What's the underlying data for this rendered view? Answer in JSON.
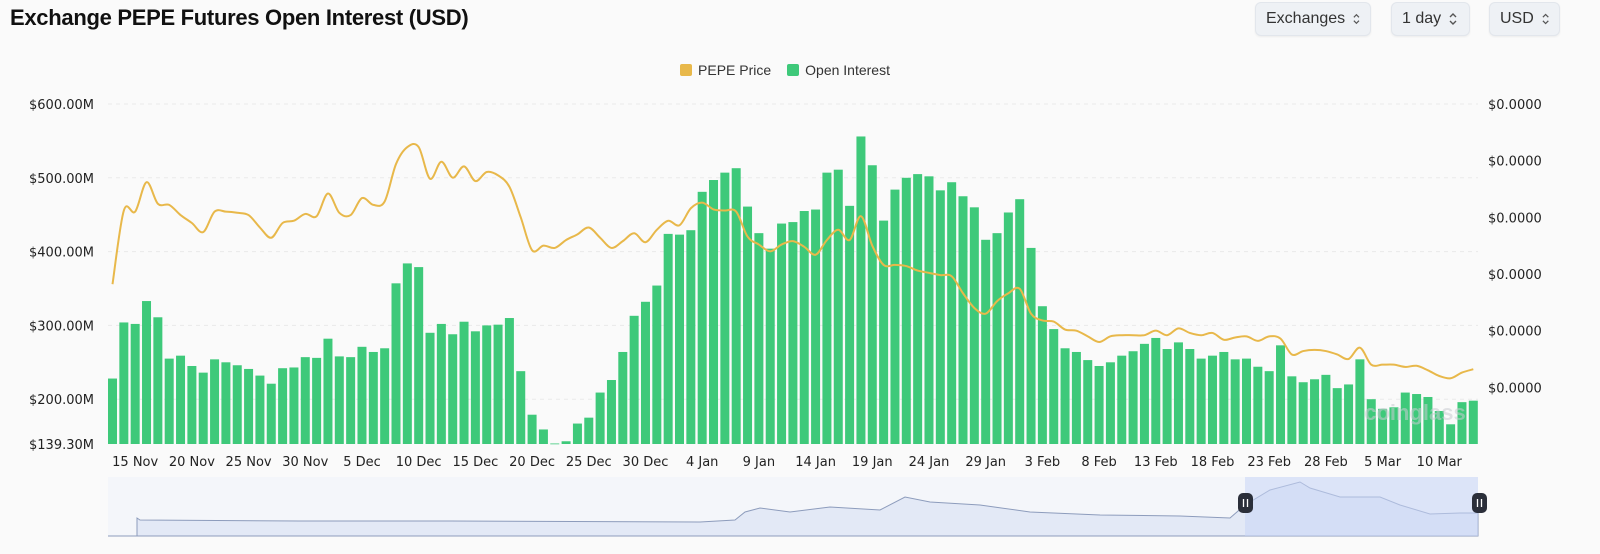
{
  "header": {
    "title": "Exchange PEPE Futures Open Interest (USD)",
    "controls": [
      {
        "label": "Exchanges"
      },
      {
        "label": "1 day"
      },
      {
        "label": "USD"
      }
    ]
  },
  "watermark": "coinglass",
  "colors": {
    "price": "#e8b84a",
    "open_interest": "#3ec97a",
    "navigator_fill": "#dfe6f5",
    "navigator_line": "#7d8fb3",
    "handle": "#2b2f3a"
  },
  "chart_data": {
    "type": "bar+line",
    "title": "Exchange PEPE Futures Open Interest (USD)",
    "legend": {
      "placement": "top-center",
      "entries": [
        "PEPE Price",
        "Open Interest"
      ]
    },
    "grid": true,
    "left_axis": {
      "ylim": [
        139.3,
        600
      ],
      "ticks": [
        "$600.00M",
        "$500.00M",
        "$400.00M",
        "$300.00M",
        "$200.00M",
        "$139.30M"
      ],
      "tick_values": [
        600,
        500,
        400,
        300,
        200,
        139.3
      ],
      "unit": "USD millions"
    },
    "right_axis": {
      "ylim": [
        0,
        3e-05
      ],
      "ticks": [
        "$0.0000",
        "$0.0000",
        "$0.0000",
        "$0.0000",
        "$0.0000",
        "$0.0000"
      ],
      "tick_values": [
        3e-05,
        2.5e-05,
        2e-05,
        1.5e-05,
        1e-05,
        5e-06
      ]
    },
    "x_ticks": [
      "15 Nov",
      "20 Nov",
      "25 Nov",
      "30 Nov",
      "5 Dec",
      "10 Dec",
      "15 Dec",
      "20 Dec",
      "25 Dec",
      "30 Dec",
      "4 Jan",
      "9 Jan",
      "14 Jan",
      "19 Jan",
      "24 Jan",
      "29 Jan",
      "3 Feb",
      "8 Feb",
      "13 Feb",
      "18 Feb",
      "23 Feb",
      "28 Feb",
      "5 Mar",
      "10 Mar"
    ],
    "categories": [
      "13 Nov",
      "14 Nov",
      "15 Nov",
      "16 Nov",
      "17 Nov",
      "18 Nov",
      "19 Nov",
      "20 Nov",
      "21 Nov",
      "22 Nov",
      "23 Nov",
      "24 Nov",
      "25 Nov",
      "26 Nov",
      "27 Nov",
      "28 Nov",
      "29 Nov",
      "30 Nov",
      "1 Dec",
      "2 Dec",
      "3 Dec",
      "4 Dec",
      "5 Dec",
      "6 Dec",
      "7 Dec",
      "8 Dec",
      "9 Dec",
      "10 Dec",
      "11 Dec",
      "12 Dec",
      "13 Dec",
      "14 Dec",
      "15 Dec",
      "16 Dec",
      "17 Dec",
      "18 Dec",
      "19 Dec",
      "20 Dec",
      "21 Dec",
      "22 Dec",
      "23 Dec",
      "24 Dec",
      "25 Dec",
      "26 Dec",
      "27 Dec",
      "28 Dec",
      "29 Dec",
      "30 Dec",
      "31 Dec",
      "1 Jan",
      "2 Jan",
      "3 Jan",
      "4 Jan",
      "5 Jan",
      "6 Jan",
      "7 Jan",
      "8 Jan",
      "9 Jan",
      "10 Jan",
      "11 Jan",
      "12 Jan",
      "13 Jan",
      "14 Jan",
      "15 Jan",
      "16 Jan",
      "17 Jan",
      "18 Jan",
      "19 Jan",
      "20 Jan",
      "21 Jan",
      "22 Jan",
      "23 Jan",
      "24 Jan",
      "25 Jan",
      "26 Jan",
      "27 Jan",
      "28 Jan",
      "29 Jan",
      "30 Jan",
      "31 Jan",
      "1 Feb",
      "2 Feb",
      "3 Feb",
      "4 Feb",
      "5 Feb",
      "6 Feb",
      "7 Feb",
      "8 Feb",
      "9 Feb",
      "10 Feb",
      "11 Feb",
      "12 Feb",
      "13 Feb",
      "14 Feb",
      "15 Feb",
      "16 Feb",
      "17 Feb",
      "18 Feb",
      "19 Feb",
      "20 Feb",
      "21 Feb",
      "22 Feb",
      "23 Feb",
      "24 Feb",
      "25 Feb",
      "26 Feb",
      "27 Feb",
      "28 Feb",
      "1 Mar",
      "2 Mar",
      "3 Mar",
      "4 Mar",
      "5 Mar",
      "6 Mar",
      "7 Mar",
      "8 Mar",
      "9 Mar",
      "10 Mar",
      "11 Mar",
      "12 Mar",
      "13 Mar"
    ],
    "series": [
      {
        "name": "Open Interest",
        "type": "bar",
        "axis": "left",
        "values": [
          228,
          304,
          302,
          333,
          311,
          255,
          259,
          245,
          236,
          254,
          250,
          246,
          241,
          232,
          221,
          242,
          243,
          257,
          256,
          282,
          258,
          257,
          271,
          264,
          269,
          357,
          384,
          379,
          290,
          302,
          288,
          305,
          292,
          300,
          301,
          310,
          238,
          179,
          159,
          140,
          143,
          167,
          175,
          209,
          226,
          264,
          313,
          332,
          354,
          424,
          423,
          429,
          481,
          497,
          507,
          513,
          461,
          425,
          404,
          438,
          440,
          455,
          457,
          507,
          511,
          462,
          556,
          517,
          442,
          484,
          500,
          505,
          502,
          483,
          494,
          475,
          460,
          416,
          425,
          453,
          471,
          405,
          326,
          295,
          269,
          264,
          253,
          245,
          250,
          259,
          265,
          275,
          283,
          268,
          277,
          268,
          255,
          259,
          264,
          254,
          255,
          244,
          238,
          273,
          231,
          223,
          227,
          233,
          215,
          220,
          254,
          200,
          187,
          189,
          209,
          207,
          203,
          184,
          166,
          196,
          198
        ]
      },
      {
        "name": "PEPE Price",
        "type": "line",
        "axis": "right",
        "values": [
          1.41e-05,
          2.06e-05,
          2.05e-05,
          2.31e-05,
          2.12e-05,
          2.11e-05,
          2.02e-05,
          1.95e-05,
          1.87e-05,
          2.05e-05,
          2.05e-05,
          2.04e-05,
          2.02e-05,
          1.91e-05,
          1.82e-05,
          1.95e-05,
          1.97e-05,
          2.03e-05,
          2.01e-05,
          2.21e-05,
          2.04e-05,
          2.02e-05,
          2.17e-05,
          2.11e-05,
          2.14e-05,
          2.47e-05,
          2.62e-05,
          2.62e-05,
          2.34e-05,
          2.49e-05,
          2.35e-05,
          2.45e-05,
          2.32e-05,
          2.4e-05,
          2.37e-05,
          2.27e-05,
          2e-05,
          1.71e-05,
          1.75e-05,
          1.73e-05,
          1.8e-05,
          1.85e-05,
          1.91e-05,
          1.82e-05,
          1.73e-05,
          1.79e-05,
          1.86e-05,
          1.78e-05,
          1.89e-05,
          1.97e-05,
          1.93e-05,
          2.08e-05,
          2.13e-05,
          2.07e-05,
          2.06e-05,
          2.05e-05,
          1.83e-05,
          1.76e-05,
          1.7e-05,
          1.76e-05,
          1.79e-05,
          1.74e-05,
          1.67e-05,
          1.8e-05,
          1.89e-05,
          1.8e-05,
          2.01e-05,
          1.75e-05,
          1.58e-05,
          1.58e-05,
          1.57e-05,
          1.53e-05,
          1.51e-05,
          1.49e-05,
          1.48e-05,
          1.33e-05,
          1.2e-05,
          1.15e-05,
          1.26e-05,
          1.33e-05,
          1.37e-05,
          1.15e-05,
          1.09e-05,
          1.08e-05,
          1.01e-05,
          1e-05,
          9.5e-06,
          9e-06,
          9.5e-06,
          9.6e-06,
          9.6e-06,
          9.6e-06,
          1e-05,
          9.6e-06,
          1.02e-05,
          9.8e-06,
          9.6e-06,
          9.8e-06,
          9.2e-06,
          9.4e-06,
          9.5e-06,
          9.1e-06,
          9.5e-06,
          9.3e-06,
          7.9e-06,
          8.2e-06,
          8.3e-06,
          8.2e-06,
          7.9e-06,
          7.5e-06,
          8.5e-06,
          7e-06,
          7e-06,
          7e-06,
          6.8e-06,
          6.9e-06,
          6.5e-06,
          6e-06,
          5.8e-06,
          6.3e-06,
          6.6e-06
        ]
      }
    ]
  }
}
